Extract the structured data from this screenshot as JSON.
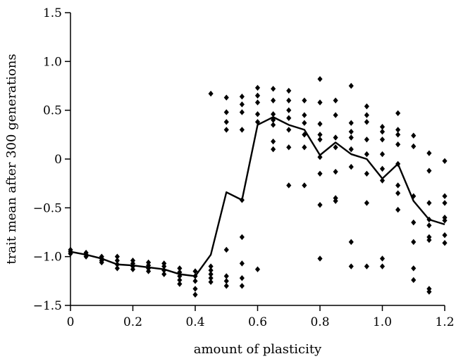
{
  "chart_data": {
    "type": "scatter",
    "title": "",
    "xlabel": "amount of plasticity",
    "ylabel": "trait mean after 300 generations",
    "xlim": [
      0,
      1.2
    ],
    "ylim": [
      -1.5,
      1.5
    ],
    "xticks": [
      0,
      0.2,
      0.4,
      0.6,
      0.8,
      1.0,
      1.2
    ],
    "xtick_labels": [
      "0",
      "0.2",
      "0.4",
      "0.6",
      "0.8",
      "1.0",
      "1.2"
    ],
    "yticks": [
      -1.5,
      -1.0,
      -0.5,
      0,
      0.5,
      1.0,
      1.5
    ],
    "ytick_labels": [
      "−1.5",
      "−1.0",
      "−0.5",
      "0",
      "0.5",
      "1.0",
      "1.5"
    ],
    "grid": false,
    "legend": "none",
    "colors": {
      "points": "#000000",
      "line": "#000000"
    },
    "series": [
      {
        "type": "scatter",
        "marker": "diamond",
        "points": [
          [
            0,
            -0.93
          ],
          [
            0,
            -0.95
          ],
          [
            0,
            -0.97
          ],
          [
            0.05,
            -0.96
          ],
          [
            0.05,
            -0.98
          ],
          [
            0.05,
            -1.0
          ],
          [
            0.1,
            -1.0
          ],
          [
            0.1,
            -1.02
          ],
          [
            0.1,
            -1.04
          ],
          [
            0.1,
            -1.06
          ],
          [
            0.15,
            -1.0
          ],
          [
            0.15,
            -1.04
          ],
          [
            0.15,
            -1.08
          ],
          [
            0.15,
            -1.12
          ],
          [
            0.2,
            -1.04
          ],
          [
            0.2,
            -1.07
          ],
          [
            0.2,
            -1.1
          ],
          [
            0.2,
            -1.13
          ],
          [
            0.25,
            -1.06
          ],
          [
            0.25,
            -1.09
          ],
          [
            0.25,
            -1.12
          ],
          [
            0.25,
            -1.15
          ],
          [
            0.3,
            -1.07
          ],
          [
            0.3,
            -1.1
          ],
          [
            0.3,
            -1.14
          ],
          [
            0.3,
            -1.18
          ],
          [
            0.35,
            -1.12
          ],
          [
            0.35,
            -1.16
          ],
          [
            0.35,
            -1.2
          ],
          [
            0.35,
            -1.24
          ],
          [
            0.35,
            -1.28
          ],
          [
            0.4,
            -1.15
          ],
          [
            0.4,
            -1.2
          ],
          [
            0.4,
            -1.25
          ],
          [
            0.4,
            -1.33
          ],
          [
            0.4,
            -1.39
          ],
          [
            0.45,
            0.67
          ],
          [
            0.45,
            -1.1
          ],
          [
            0.45,
            -1.14
          ],
          [
            0.45,
            -1.18
          ],
          [
            0.45,
            -1.22
          ],
          [
            0.45,
            -1.26
          ],
          [
            0.5,
            0.63
          ],
          [
            0.5,
            0.48
          ],
          [
            0.5,
            0.38
          ],
          [
            0.5,
            0.3
          ],
          [
            0.5,
            -0.93
          ],
          [
            0.5,
            -1.2
          ],
          [
            0.5,
            -1.25
          ],
          [
            0.5,
            -1.3
          ],
          [
            0.55,
            0.64
          ],
          [
            0.55,
            0.56
          ],
          [
            0.55,
            0.48
          ],
          [
            0.55,
            0.3
          ],
          [
            0.55,
            -0.42
          ],
          [
            0.55,
            -0.8
          ],
          [
            0.55,
            -1.07
          ],
          [
            0.55,
            -1.22
          ],
          [
            0.55,
            -1.3
          ],
          [
            0.6,
            0.73
          ],
          [
            0.6,
            0.65
          ],
          [
            0.6,
            0.58
          ],
          [
            0.6,
            0.46
          ],
          [
            0.6,
            0.38
          ],
          [
            0.6,
            -1.13
          ],
          [
            0.65,
            0.72
          ],
          [
            0.65,
            0.6
          ],
          [
            0.65,
            0.46
          ],
          [
            0.65,
            0.4
          ],
          [
            0.65,
            0.35
          ],
          [
            0.65,
            0.18
          ],
          [
            0.65,
            0.1
          ],
          [
            0.7,
            0.7
          ],
          [
            0.7,
            0.6
          ],
          [
            0.7,
            0.5
          ],
          [
            0.7,
            0.42
          ],
          [
            0.7,
            0.3
          ],
          [
            0.7,
            0.12
          ],
          [
            0.7,
            -0.27
          ],
          [
            0.75,
            0.6
          ],
          [
            0.75,
            0.45
          ],
          [
            0.75,
            0.37
          ],
          [
            0.75,
            0.25
          ],
          [
            0.75,
            0.12
          ],
          [
            0.75,
            -0.27
          ],
          [
            0.8,
            0.82
          ],
          [
            0.8,
            0.58
          ],
          [
            0.8,
            0.36
          ],
          [
            0.8,
            0.25
          ],
          [
            0.8,
            0.2
          ],
          [
            0.8,
            0.02
          ],
          [
            0.8,
            -0.15
          ],
          [
            0.8,
            -0.47
          ],
          [
            0.8,
            -1.02
          ],
          [
            0.85,
            0.6
          ],
          [
            0.85,
            0.45
          ],
          [
            0.85,
            0.22
          ],
          [
            0.85,
            0.12
          ],
          [
            0.85,
            -0.13
          ],
          [
            0.85,
            -0.4
          ],
          [
            0.85,
            -0.43
          ],
          [
            0.9,
            0.75
          ],
          [
            0.9,
            0.37
          ],
          [
            0.9,
            0.28
          ],
          [
            0.9,
            0.22
          ],
          [
            0.9,
            0.1
          ],
          [
            0.9,
            -0.08
          ],
          [
            0.9,
            -0.85
          ],
          [
            0.9,
            -1.1
          ],
          [
            0.95,
            0.54
          ],
          [
            0.95,
            0.45
          ],
          [
            0.95,
            0.38
          ],
          [
            0.95,
            0.2
          ],
          [
            0.95,
            0.05
          ],
          [
            0.95,
            -0.15
          ],
          [
            0.95,
            -0.45
          ],
          [
            0.95,
            -1.1
          ],
          [
            1.0,
            0.33
          ],
          [
            1.0,
            0.28
          ],
          [
            1.0,
            0.2
          ],
          [
            1.0,
            0.05
          ],
          [
            1.0,
            -0.1
          ],
          [
            1.0,
            -0.22
          ],
          [
            1.0,
            -1.02
          ],
          [
            1.0,
            -1.1
          ],
          [
            1.05,
            0.47
          ],
          [
            1.05,
            0.3
          ],
          [
            1.05,
            0.25
          ],
          [
            1.05,
            0.15
          ],
          [
            1.05,
            -0.05
          ],
          [
            1.05,
            -0.27
          ],
          [
            1.05,
            -0.35
          ],
          [
            1.05,
            -0.52
          ],
          [
            1.1,
            0.24
          ],
          [
            1.1,
            0.13
          ],
          [
            1.1,
            -0.38
          ],
          [
            1.1,
            -0.65
          ],
          [
            1.1,
            -0.85
          ],
          [
            1.1,
            -1.12
          ],
          [
            1.1,
            -1.24
          ],
          [
            1.15,
            0.06
          ],
          [
            1.15,
            -0.12
          ],
          [
            1.15,
            -0.45
          ],
          [
            1.15,
            -0.62
          ],
          [
            1.15,
            -0.68
          ],
          [
            1.15,
            -0.8
          ],
          [
            1.15,
            -0.83
          ],
          [
            1.15,
            -1.33
          ],
          [
            1.15,
            -1.36
          ],
          [
            1.2,
            -0.02
          ],
          [
            1.2,
            -0.38
          ],
          [
            1.2,
            -0.45
          ],
          [
            1.2,
            -0.6
          ],
          [
            1.2,
            -0.63
          ],
          [
            1.2,
            -0.78
          ],
          [
            1.2,
            -0.86
          ]
        ]
      },
      {
        "type": "line",
        "x": [
          0,
          0.05,
          0.1,
          0.15,
          0.2,
          0.25,
          0.3,
          0.35,
          0.4,
          0.45,
          0.5,
          0.55,
          0.6,
          0.65,
          0.7,
          0.75,
          0.8,
          0.85,
          0.9,
          0.95,
          1.0,
          1.05,
          1.1,
          1.15,
          1.2
        ],
        "y": [
          -0.95,
          -0.98,
          -1.02,
          -1.08,
          -1.09,
          -1.11,
          -1.13,
          -1.18,
          -1.2,
          -0.98,
          -0.34,
          -0.42,
          0.35,
          0.43,
          0.35,
          0.3,
          0.04,
          0.17,
          0.05,
          0.0,
          -0.2,
          -0.05,
          -0.43,
          -0.62,
          -0.67
        ]
      }
    ]
  }
}
